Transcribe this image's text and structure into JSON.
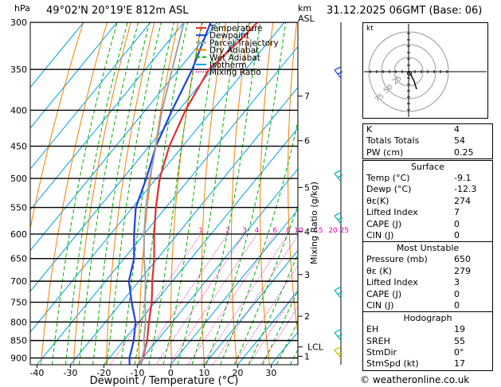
{
  "header": {
    "location": "49°02'N  20°19'E  812m  ASL",
    "datetime": "31.12.2025  06GMT  (Base: 06)",
    "pressure_unit": "hPa",
    "km_unit": "km",
    "asl_unit": "ASL"
  },
  "legend": [
    "Temperature",
    "Dewpoint",
    "Parcel Trajectory",
    "Dry Adiabat",
    "Wet Adiabat",
    "Isotherm",
    "Mixing Ratio"
  ],
  "colors": {
    "temperature": "#e03030",
    "dewpoint": "#2040e0",
    "parcel": "#a0a0a0",
    "dry_adiabat": "#f08000",
    "wet_adiabat": "#00b000",
    "isotherm": "#00a0e0",
    "mixing_ratio": "#e000b0",
    "wind": "#00b0c0"
  },
  "chart_data": {
    "type": "line",
    "xlabel": "Dewpoint / Temperature (°C)",
    "ylabel": "hPa",
    "xlim": [
      -42,
      38
    ],
    "pressure_range": [
      300,
      920
    ],
    "x_ticks": [
      "-40",
      "-30",
      "-20",
      "-10",
      "0",
      "10",
      "20",
      "30"
    ],
    "pressure_levels": [
      "300",
      "350",
      "400",
      "450",
      "500",
      "550",
      "600",
      "650",
      "700",
      "750",
      "800",
      "850",
      "900"
    ],
    "km_axis": [
      {
        "label": "7",
        "p": 382
      },
      {
        "label": "6",
        "p": 442
      },
      {
        "label": "5",
        "p": 515
      },
      {
        "label": "4",
        "p": 595
      },
      {
        "label": "3",
        "p": 685
      },
      {
        "label": "2",
        "p": 785
      },
      {
        "label": "LCL",
        "p": 868
      },
      {
        "label": "1",
        "p": 895
      }
    ],
    "mixing_ratio_axis_label": "Mixing Ratio (g/kg)",
    "mixing_ratio_labels": [
      "1",
      "2",
      "3",
      "4",
      "6",
      "8",
      "10",
      "15",
      "20",
      "25"
    ],
    "mixing_ratios": [
      1,
      2,
      3,
      4,
      6,
      8,
      10,
      15,
      20,
      25
    ],
    "series": [
      {
        "name": "Temperature",
        "p": [
          920,
          900,
          850,
          800,
          750,
          700,
          650,
          600,
          550,
          500,
          450,
          400,
          350,
          320,
          300
        ],
        "t": [
          -9.1,
          -10,
          -13,
          -17,
          -21,
          -26,
          -31,
          -37,
          -43,
          -49,
          -54,
          -58,
          -61,
          -59,
          -58
        ]
      },
      {
        "name": "Dewpoint",
        "p": [
          920,
          900,
          850,
          800,
          750,
          700,
          650,
          600,
          550,
          500,
          450,
          400,
          350,
          300
        ],
        "t": [
          -12.3,
          -14,
          -17,
          -21,
          -27,
          -33,
          -37,
          -43,
          -49,
          -53,
          -58,
          -62,
          -66,
          -72
        ]
      },
      {
        "name": "Parcel Trajectory",
        "p": [
          920,
          870,
          850,
          800,
          750,
          700,
          650,
          600,
          550,
          500,
          450,
          400,
          350,
          300
        ],
        "t": [
          -9.1,
          -12,
          -14,
          -18,
          -23,
          -28,
          -34,
          -40,
          -46,
          -52,
          -58,
          -65,
          -72,
          -80
        ]
      }
    ]
  },
  "hodograph": {
    "label": "kt",
    "rings": [
      "25",
      "50",
      "75"
    ]
  },
  "indices": {
    "basic": [
      {
        "k": "K",
        "v": "4"
      },
      {
        "k": "Totals Totals",
        "v": "54"
      },
      {
        "k": "PW (cm)",
        "v": "0.25"
      }
    ],
    "surface": {
      "title": "Surface",
      "rows": [
        {
          "k": "Temp (°C)",
          "v": "-9.1"
        },
        {
          "k": "Dewp (°C)",
          "v": "-12.3"
        },
        {
          "k": "θε(K)",
          "v": "274"
        },
        {
          "k": "Lifted Index",
          "v": "7"
        },
        {
          "k": "CAPE (J)",
          "v": "0"
        },
        {
          "k": "CIN (J)",
          "v": "0"
        }
      ]
    },
    "most_unstable": {
      "title": "Most Unstable",
      "rows": [
        {
          "k": "Pressure (mb)",
          "v": "650"
        },
        {
          "k": "θε (K)",
          "v": "279"
        },
        {
          "k": "Lifted Index",
          "v": "3"
        },
        {
          "k": "CAPE (J)",
          "v": "0"
        },
        {
          "k": "CIN (J)",
          "v": "0"
        }
      ]
    },
    "hodograph": {
      "title": "Hodograph",
      "rows": [
        {
          "k": "EH",
          "v": "19"
        },
        {
          "k": "SREH",
          "v": "55"
        },
        {
          "k": "StmDir",
          "v": "0°"
        },
        {
          "k": "StmSpd (kt)",
          "v": "17"
        }
      ]
    }
  },
  "footer": "© weatheronline.co.uk"
}
